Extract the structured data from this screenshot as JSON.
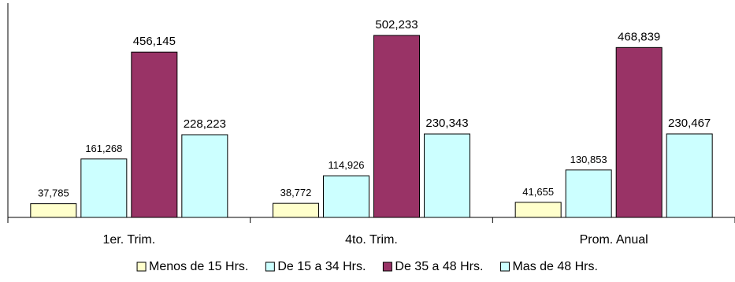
{
  "chart_data": {
    "type": "bar",
    "categories": [
      "1er. Trim.",
      "4to. Trim.",
      "Prom. Anual"
    ],
    "series": [
      {
        "name": "Menos de 15 Hrs.",
        "color": "#FFFFCC",
        "values": [
          37785,
          38772,
          41655
        ],
        "labels": [
          "37,785",
          "38,772",
          "41,655"
        ]
      },
      {
        "name": "De 15 a 34 Hrs.",
        "color": "#CCFFFF",
        "values": [
          161268,
          114926,
          130853
        ],
        "labels": [
          "161,268",
          "114,926",
          "130,853"
        ]
      },
      {
        "name": "De 35 a 48 Hrs.",
        "color": "#993366",
        "values": [
          456145,
          502233,
          468839
        ],
        "labels": [
          "456,145",
          "502,233",
          "468,839"
        ]
      },
      {
        "name": "Mas de 48 Hrs.",
        "color": "#CCFFFF",
        "values": [
          228223,
          230343,
          230467
        ],
        "labels": [
          "228,223",
          "230,343",
          "230,467"
        ]
      }
    ],
    "ylim": [
      0,
      600000
    ],
    "grid": false,
    "legend_position": "bottom"
  }
}
